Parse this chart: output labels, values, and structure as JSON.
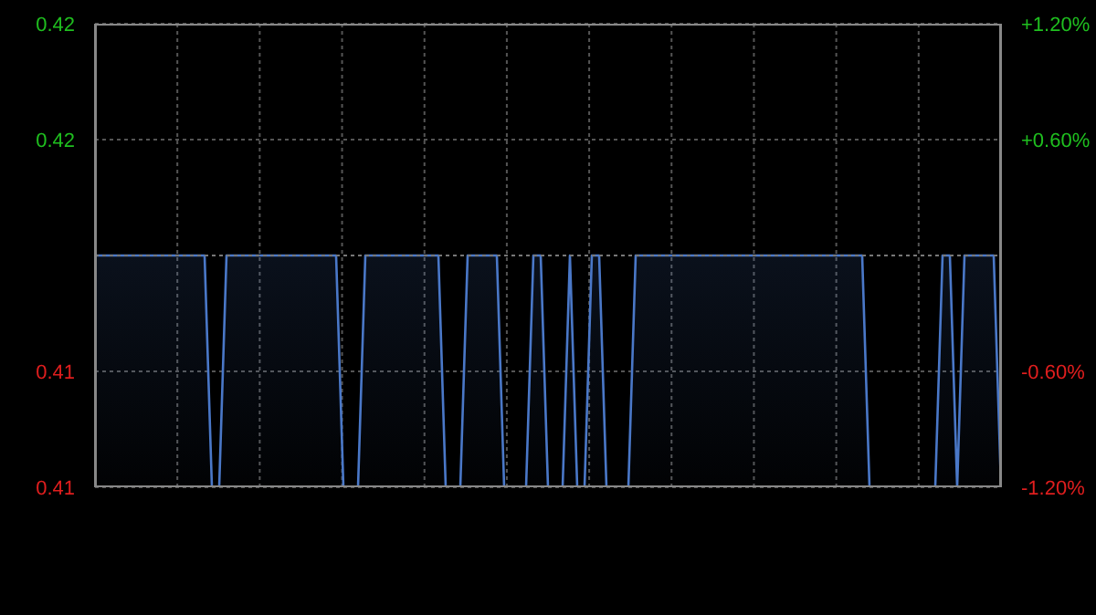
{
  "chart_data": {
    "type": "area",
    "categories": [
      null,
      null,
      null,
      null,
      null,
      null,
      null,
      null,
      null,
      null,
      null,
      null,
      null,
      null,
      null,
      null,
      null,
      null,
      null,
      null,
      null,
      null,
      null,
      null,
      null,
      null,
      null,
      null,
      null,
      null,
      null,
      null,
      null,
      null,
      null,
      null,
      null,
      null,
      null,
      null,
      null,
      null,
      null,
      null,
      null,
      null,
      null,
      null,
      null,
      null,
      null,
      null,
      null,
      null,
      null,
      null,
      null,
      null,
      null,
      null,
      null,
      null,
      null,
      null,
      null,
      null,
      null,
      null,
      null,
      null,
      null,
      null,
      null,
      null,
      null,
      null,
      null,
      null,
      null,
      null,
      null,
      null,
      null,
      null,
      null,
      null,
      null,
      null,
      null,
      null,
      null,
      null,
      null,
      null,
      null,
      null,
      null,
      null,
      null,
      null,
      null,
      null,
      null,
      null,
      null,
      null,
      null,
      null,
      null,
      null,
      null,
      null,
      null,
      null,
      null,
      null,
      null,
      null,
      null,
      null,
      null,
      null,
      null,
      null,
      null
    ],
    "series": [
      {
        "color": "#4a78c8",
        "values": [
          0.415,
          0.415,
          0.415,
          0.415,
          0.415,
          0.415,
          0.415,
          0.415,
          0.415,
          0.415,
          0.415,
          0.415,
          0.415,
          0.415,
          0.415,
          0.415,
          0.41,
          0.41,
          0.415,
          0.415,
          0.415,
          0.415,
          0.415,
          0.415,
          0.415,
          0.415,
          0.415,
          0.415,
          0.415,
          0.415,
          0.415,
          0.415,
          0.415,
          0.415,
          0.41,
          0.41,
          0.41,
          0.415,
          0.415,
          0.415,
          0.415,
          0.415,
          0.415,
          0.415,
          0.415,
          0.415,
          0.415,
          0.415,
          0.41,
          0.41,
          0.41,
          0.415,
          0.415,
          0.415,
          0.415,
          0.415,
          0.41,
          0.41,
          0.41,
          0.41,
          0.415,
          0.415,
          0.41,
          0.41,
          0.41,
          0.415,
          0.41,
          0.41,
          0.415,
          0.415,
          0.41,
          0.41,
          0.41,
          0.41,
          0.415,
          0.415,
          0.415,
          0.415,
          0.415,
          0.415,
          0.415,
          0.415,
          0.415,
          0.415,
          0.415,
          0.415,
          0.415,
          0.415,
          0.415,
          0.415,
          0.415,
          0.415,
          0.415,
          0.415,
          0.415,
          0.415,
          0.415,
          0.415,
          0.415,
          0.415,
          0.415,
          0.415,
          0.415,
          0.415,
          0.415,
          0.415,
          0.41,
          0.41,
          0.41,
          0.41,
          0.41,
          0.41,
          0.41,
          0.41,
          0.41,
          0.41,
          0.415,
          0.415,
          0.41,
          0.415,
          0.415,
          0.415,
          0.415,
          0.415,
          0.41
        ]
      }
    ],
    "ylim": [
      0.41,
      0.42
    ],
    "yticks": [
      {
        "value": 0.42,
        "label": "0.42"
      },
      {
        "value": 0.4175,
        "label": "0.42"
      },
      {
        "value": 0.4125,
        "label": "0.41"
      },
      {
        "value": 0.41,
        "label": "0.41"
      }
    ],
    "y2lim": [
      -1.2,
      1.2
    ],
    "y2ticks": [
      {
        "value": 1.2,
        "label": "+1.20%"
      },
      {
        "value": 0.6,
        "label": "+0.60%"
      },
      {
        "value": -0.6,
        "label": "-0.60%"
      },
      {
        "value": -1.2,
        "label": "-1.20%"
      }
    ],
    "ref_lines": [
      {
        "axis": "y",
        "value": 0.415,
        "color": "#777777",
        "line_style": "dotted"
      }
    ],
    "grid": true,
    "tick_labels": "y"
  }
}
